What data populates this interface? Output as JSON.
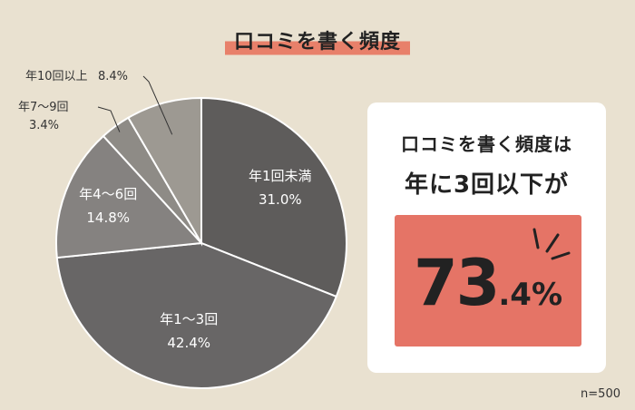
{
  "title": "口コミを書く頻度",
  "chart_data": {
    "type": "pie",
    "labels": [
      "年1回未満",
      "年1～3回",
      "年4～6回",
      "年7～9回",
      "年10回以上"
    ],
    "values": [
      31.0,
      42.4,
      14.8,
      3.4,
      8.4
    ],
    "value_labels": [
      "31.0%",
      "42.4%",
      "14.8%",
      "3.4%",
      "8.4%"
    ],
    "colors": [
      "#5e5c5b",
      "#686666",
      "#858280",
      "#8e8b86",
      "#9d9992"
    ],
    "start": "12 o'clock",
    "direction": "clockwise",
    "labels_inside": [
      0,
      1,
      2
    ],
    "labels_outside": [
      3,
      4
    ]
  },
  "callout": {
    "line1": "口コミを書く頻度は",
    "line2": "年に3回以下が",
    "value_main": "73",
    "value_decimal": ".4%"
  },
  "sample": "n=500"
}
